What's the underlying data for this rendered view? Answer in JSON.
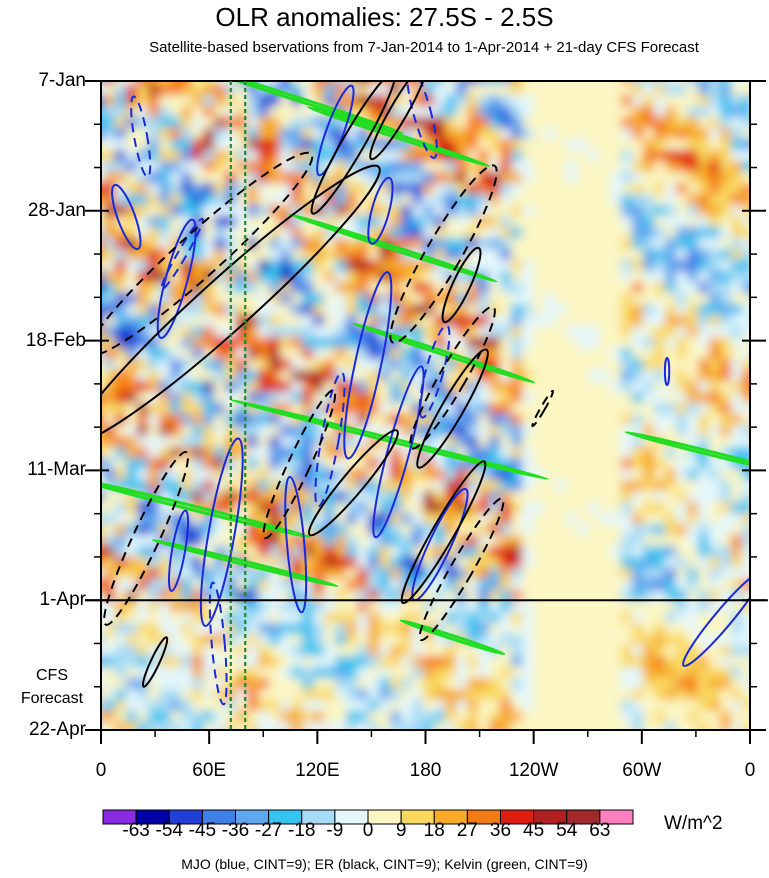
{
  "chart_data": {
    "type": "heatmap",
    "title": "OLR anomalies: 27.5S - 2.5S",
    "subtitle": "Satellite-based bservations from 7-Jan-2014 to 1-Apr-2014 + 21-day CFS Forecast",
    "x_axis": {
      "ticks": [
        {
          "label": "0",
          "lon": 0
        },
        {
          "label": "60E",
          "lon": 60
        },
        {
          "label": "120E",
          "lon": 120
        },
        {
          "label": "180",
          "lon": 180
        },
        {
          "label": "120W",
          "lon": 240
        },
        {
          "label": "60W",
          "lon": 300
        },
        {
          "label": "0",
          "lon": 360
        }
      ],
      "range": [
        0,
        360
      ]
    },
    "y_axis": {
      "ticks": [
        {
          "label": "7-Jan",
          "day": 0
        },
        {
          "label": "28-Jan",
          "day": 21
        },
        {
          "label": "18-Feb",
          "day": 42
        },
        {
          "label": "11-Mar",
          "day": 63
        },
        {
          "label": "1-Apr",
          "day": 84
        },
        {
          "label": "22-Apr",
          "day": 105
        }
      ],
      "range": [
        0,
        105
      ],
      "forecast_start_day": 84
    },
    "forecast_label": [
      "CFS",
      "Forecast"
    ],
    "reference_lines_lon": [
      72,
      80
    ],
    "colorbar": {
      "levels": [
        -63,
        -54,
        -45,
        -36,
        -27,
        -18,
        -9,
        0,
        9,
        18,
        27,
        36,
        45,
        54,
        63
      ],
      "colors": [
        "#8a2be2",
        "#0000a8",
        "#1f3fd6",
        "#3f7fe8",
        "#5fa6ee",
        "#35c3f0",
        "#a8dcf6",
        "#e4f7fb",
        "#fbf6c2",
        "#f9d860",
        "#f7ab28",
        "#f47a16",
        "#e01e10",
        "#b02020",
        "#a02a2a",
        "#ff80c0"
      ],
      "tick_labels": [
        "-63",
        "-54",
        "-45",
        "-36",
        "-27",
        "-18",
        "-9",
        "0",
        "9",
        "18",
        "27",
        "36",
        "45",
        "54",
        "63"
      ],
      "units": "W/m^2"
    },
    "legend": "MJO (blue, CINT=9); ER (black, CINT=9); Kelvin (green, CINT=9)",
    "contours": {
      "mjo": [
        {
          "lon": 22,
          "day": 9,
          "rx": 3,
          "ry": 6,
          "rot": -10,
          "dash": true
        },
        {
          "lon": 45,
          "day": 28,
          "rx": 2,
          "ry": 6,
          "rot": 30,
          "dash": true
        },
        {
          "lon": 14,
          "day": 22,
          "rx": 4,
          "ry": 5,
          "rot": -20,
          "dash": false
        },
        {
          "lon": 42,
          "day": 32,
          "rx": 5,
          "ry": 9,
          "rot": 15,
          "dash": false
        },
        {
          "lon": 130,
          "day": 8,
          "rx": 4,
          "ry": 7,
          "rot": 20,
          "dash": false
        },
        {
          "lon": 155,
          "day": 21,
          "rx": 4,
          "ry": 5,
          "rot": 15,
          "dash": false
        },
        {
          "lon": 178,
          "day": 5,
          "rx": 4,
          "ry": 7,
          "rot": -15,
          "dash": true
        },
        {
          "lon": 148,
          "day": 46,
          "rx": 6,
          "ry": 14,
          "rot": 12,
          "dash": false
        },
        {
          "lon": 127,
          "day": 58,
          "rx": 4,
          "ry": 10,
          "rot": 10,
          "dash": true
        },
        {
          "lon": 165,
          "day": 60,
          "rx": 5,
          "ry": 13,
          "rot": 15,
          "dash": false
        },
        {
          "lon": 185,
          "day": 47,
          "rx": 4,
          "ry": 7,
          "rot": 15,
          "dash": true
        },
        {
          "lon": 67,
          "day": 73,
          "rx": 6,
          "ry": 14,
          "rot": 10,
          "dash": false
        },
        {
          "lon": 43,
          "day": 76,
          "rx": 3,
          "ry": 6,
          "rot": 10,
          "dash": false
        },
        {
          "lon": 108,
          "day": 75,
          "rx": 4,
          "ry": 10,
          "rot": -5,
          "dash": false
        },
        {
          "lon": 65,
          "day": 91,
          "rx": 3,
          "ry": 9,
          "rot": -5,
          "dash": true
        },
        {
          "lon": 188,
          "day": 75,
          "rx": 5,
          "ry": 9,
          "rot": 25,
          "dash": false
        },
        {
          "lon": 345,
          "day": 87,
          "rx": 4,
          "ry": 9,
          "rot": 40,
          "dash": false
        },
        {
          "lon": 314,
          "day": 47,
          "rx": 1,
          "ry": 2,
          "rot": 0,
          "dash": false
        }
      ],
      "er": [
        {
          "lon": 70,
          "day": 36,
          "rx": 12,
          "ry": 30,
          "rot": 48,
          "dash": false
        },
        {
          "lon": 55,
          "day": 28,
          "rx": 10,
          "ry": 22,
          "rot": 48,
          "dash": true
        },
        {
          "lon": 140,
          "day": 10,
          "rx": 5,
          "ry": 12,
          "rot": 30,
          "dash": false
        },
        {
          "lon": 165,
          "day": 5,
          "rx": 4,
          "ry": 8,
          "rot": 30,
          "dash": false
        },
        {
          "lon": 190,
          "day": 28,
          "rx": 8,
          "ry": 15,
          "rot": 30,
          "dash": true
        },
        {
          "lon": 200,
          "day": 33,
          "rx": 4,
          "ry": 6,
          "rot": 25,
          "dash": false
        },
        {
          "lon": 195,
          "day": 53,
          "rx": 5,
          "ry": 10,
          "rot": 30,
          "dash": false
        },
        {
          "lon": 195,
          "day": 48,
          "rx": 6,
          "ry": 12,
          "rot": 30,
          "dash": true
        },
        {
          "lon": 140,
          "day": 65,
          "rx": 5,
          "ry": 10,
          "rot": 40,
          "dash": false
        },
        {
          "lon": 110,
          "day": 62,
          "rx": 5,
          "ry": 12,
          "rot": 25,
          "dash": true
        },
        {
          "lon": 190,
          "day": 73,
          "rx": 5,
          "ry": 12,
          "rot": 30,
          "dash": false
        },
        {
          "lon": 200,
          "day": 79,
          "rx": 5,
          "ry": 12,
          "rot": 30,
          "dash": true
        },
        {
          "lon": 25,
          "day": 74,
          "rx": 6,
          "ry": 14,
          "rot": 25,
          "dash": true
        },
        {
          "lon": 30,
          "day": 94,
          "rx": 2,
          "ry": 4,
          "rot": 25,
          "dash": false
        },
        {
          "lon": 245,
          "day": 53,
          "rx": 1,
          "ry": 3,
          "rot": 30,
          "dash": true
        }
      ],
      "kelvin": [
        {
          "lon": 110,
          "day": 3,
          "rx": 1,
          "ry": 16,
          "rot": -72
        },
        {
          "lon": 165,
          "day": 9,
          "rx": 1,
          "ry": 14,
          "rot": -72
        },
        {
          "lon": 162,
          "day": 27,
          "rx": 1,
          "ry": 16,
          "rot": -72
        },
        {
          "lon": 190,
          "day": 44,
          "rx": 1,
          "ry": 14,
          "rot": -72
        },
        {
          "lon": 160,
          "day": 58,
          "rx": 1,
          "ry": 24,
          "rot": -76
        },
        {
          "lon": 50,
          "day": 69,
          "rx": 1.2,
          "ry": 18,
          "rot": -76
        },
        {
          "lon": 80,
          "day": 78,
          "rx": 1,
          "ry": 14,
          "rot": -76
        },
        {
          "lon": 195,
          "day": 90,
          "rx": 1,
          "ry": 8,
          "rot": -72
        },
        {
          "lon": 335,
          "day": 60,
          "rx": 1,
          "ry": 12,
          "rot": -76
        }
      ]
    }
  }
}
